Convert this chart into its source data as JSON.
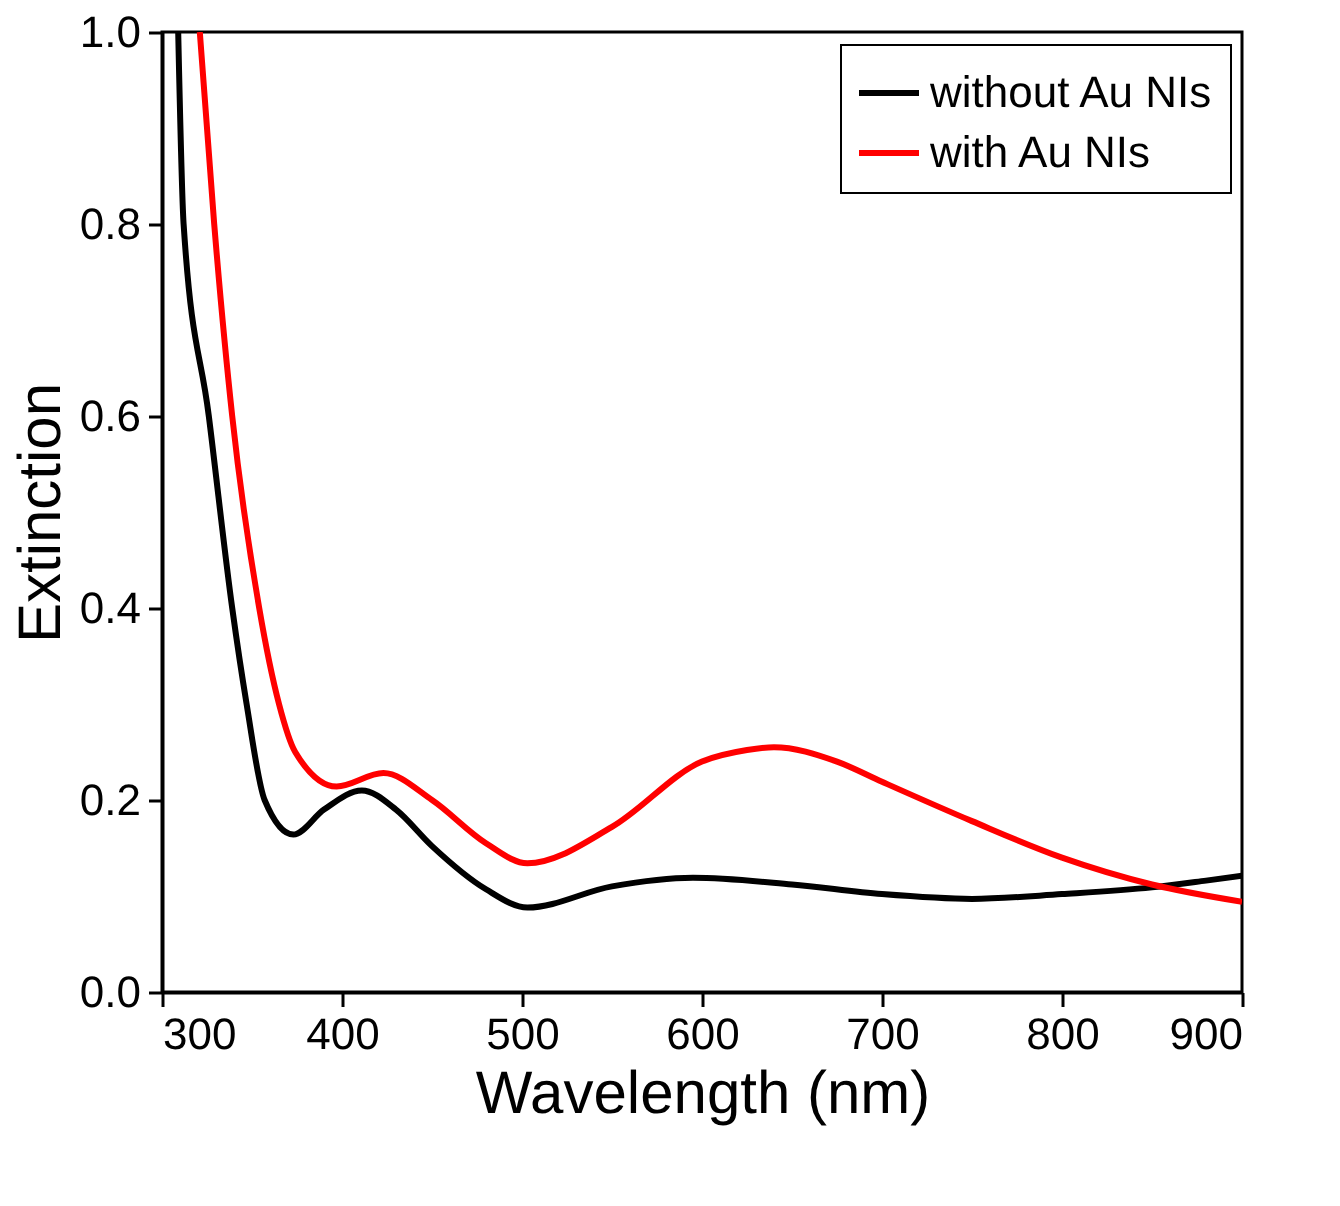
{
  "chart_data": {
    "type": "line",
    "xlabel": "Wavelength (nm)",
    "ylabel": "Extinction",
    "xlim": [
      300,
      900
    ],
    "ylim": [
      0,
      1.0
    ],
    "xticks": [
      300,
      400,
      500,
      600,
      700,
      800,
      900
    ],
    "yticks": [
      {
        "value": 0,
        "label": "0.0"
      },
      0.2,
      0.4,
      0.6,
      0.8,
      {
        "value": 1,
        "label": "1.0"
      }
    ],
    "grid": false,
    "legend": "top right",
    "line_style": "solid",
    "marker": "none",
    "series": [
      {
        "name": "without Au NIs",
        "color": "#000000",
        "x": [
          309,
          312,
          326,
          339,
          347,
          357,
          373,
          390,
          411,
          430,
          450,
          480,
          503,
          550,
          595,
          650,
          700,
          750,
          800,
          850,
          880,
          900
        ],
        "values": [
          1.0,
          0.8,
          0.6,
          0.4,
          0.3,
          0.2,
          0.164,
          0.19,
          0.21,
          0.19,
          0.152,
          0.107,
          0.088,
          0.11,
          0.119,
          0.112,
          0.102,
          0.097,
          0.102,
          0.109,
          0.116,
          0.121
        ]
      },
      {
        "name": "with Au NIs",
        "color": "#ff0000",
        "x": [
          321,
          329,
          339,
          354,
          365,
          374,
          397,
          423,
          450,
          480,
          503,
          550,
          600,
          625,
          640,
          675,
          700,
          750,
          800,
          850,
          900
        ],
        "values": [
          1.0,
          0.8,
          0.6,
          0.4,
          0.3,
          0.25,
          0.214,
          0.228,
          0.2,
          0.155,
          0.134,
          0.172,
          0.24,
          0.252,
          0.255,
          0.24,
          0.219,
          0.178,
          0.14,
          0.112,
          0.094
        ]
      }
    ]
  }
}
